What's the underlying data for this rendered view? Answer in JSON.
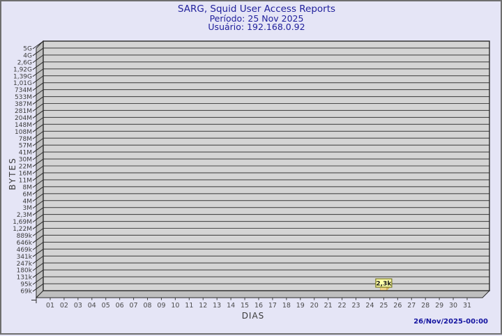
{
  "title": {
    "line1": "SARG, Squid User Access Reports",
    "line2": "Período: 25 Nov 2025",
    "line3": "Usuário: 192.168.0.92"
  },
  "axes": {
    "y_label": "BYTES",
    "x_label": "DIAS"
  },
  "footer": {
    "generated_at": "26/Nov/2025-00:00"
  },
  "colors": {
    "background": "#e5e5f6",
    "frame_border": "#6e6e6e",
    "plot_face": "#d4d4d4",
    "plot_wall": "#bfbfbf",
    "grid_line": "#4a4a4a",
    "axis_stroke": "#2a2a2a",
    "tick_text": "#3c3c3c",
    "title_text": "#21219c",
    "timestamp_text": "#1414a0",
    "bar_front": "#f0d38a",
    "bar_top": "#f9ecc0",
    "bar_side": "#cfae5e",
    "value_box_bg": "#ffffa8",
    "value_box_border": "#787820",
    "value_box_text": "#1a1a1a"
  },
  "chart_data": {
    "type": "bar",
    "title": "SARG, Squid User Access Reports",
    "subtitle": [
      "Período: 25 Nov 2025",
      "Usuário: 192.168.0.92"
    ],
    "xlabel": "DIAS",
    "ylabel": "BYTES",
    "y_scale": "logarithmic",
    "y_tick_labels": [
      "5G",
      "4G",
      "2,6G",
      "1,92G",
      "1,39G",
      "1,01G",
      "734M",
      "533M",
      "387M",
      "281M",
      "204M",
      "148M",
      "108M",
      "78M",
      "57M",
      "41M",
      "30M",
      "22M",
      "16M",
      "11M",
      "8M",
      "6M",
      "4M",
      "3M",
      "2,3M",
      "1,69M",
      "1,22M",
      "889k",
      "646k",
      "469k",
      "341k",
      "247k",
      "180k",
      "131k",
      "95k",
      "69k"
    ],
    "x_tick_labels": [
      "01",
      "02",
      "03",
      "04",
      "05",
      "06",
      "07",
      "08",
      "09",
      "10",
      "11",
      "12",
      "13",
      "14",
      "15",
      "16",
      "17",
      "18",
      "19",
      "20",
      "21",
      "22",
      "23",
      "24",
      "25",
      "26",
      "27",
      "28",
      "29",
      "30",
      "31"
    ],
    "bars": [
      {
        "day": 25,
        "value_label": "2,3k",
        "value_bytes": 2300
      }
    ],
    "legend": null,
    "grid": true
  }
}
